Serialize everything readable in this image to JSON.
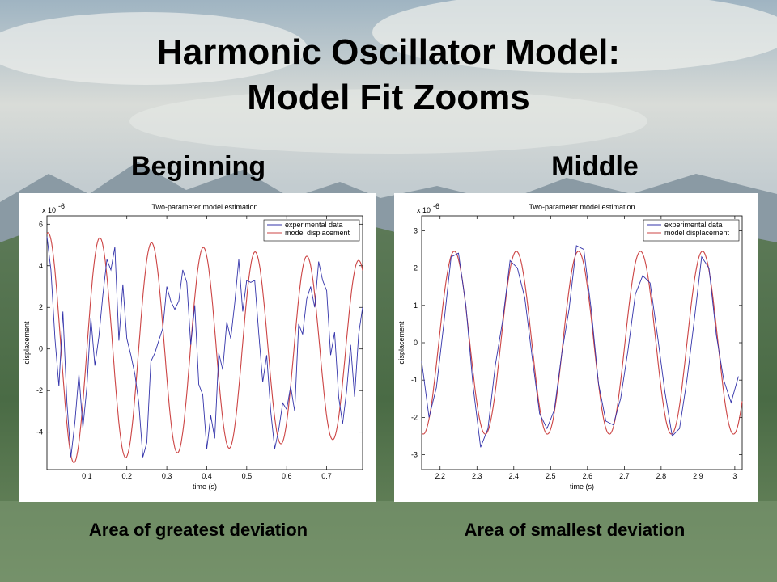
{
  "slide": {
    "title_line1": "Harmonic Oscillator Model:",
    "title_line2": "Model Fit Zooms",
    "left_heading": "Beginning",
    "right_heading": "Middle",
    "left_caption": "Area of greatest deviation",
    "right_caption": "Area of smallest deviation",
    "background_colors": {
      "sky": "#b9c7d0",
      "mountain": "#7f8f99",
      "forest": "#3f5f3a"
    }
  },
  "chart_data": [
    {
      "type": "line",
      "title": "Two-parameter model estimation",
      "xlabel": "time (s)",
      "ylabel": "displacement",
      "y_exponent": "x 10",
      "y_exponent_power": "-6",
      "xlim": [
        0.0,
        0.79
      ],
      "ylim": [
        -5.8,
        6.4
      ],
      "xticks": [
        0.1,
        0.2,
        0.3,
        0.4,
        0.5,
        0.6,
        0.7
      ],
      "xtick_labels": [
        "0.1",
        "0.2",
        "0.3",
        "0.4",
        "0.5",
        "0.6",
        "0.7"
      ],
      "yticks": [
        -4,
        -2,
        0,
        2,
        4,
        6
      ],
      "ytick_labels": [
        "-4",
        "-2",
        "0",
        "2",
        "4",
        "6"
      ],
      "legend_position": "top-right",
      "series": [
        {
          "name": "experimental data",
          "color": "#3333aa",
          "x": [
            0.0,
            0.01,
            0.02,
            0.03,
            0.04,
            0.05,
            0.06,
            0.07,
            0.08,
            0.09,
            0.1,
            0.11,
            0.12,
            0.13,
            0.14,
            0.15,
            0.16,
            0.17,
            0.18,
            0.19,
            0.2,
            0.21,
            0.22,
            0.23,
            0.24,
            0.25,
            0.26,
            0.27,
            0.28,
            0.29,
            0.3,
            0.31,
            0.32,
            0.33,
            0.34,
            0.35,
            0.36,
            0.37,
            0.38,
            0.39,
            0.4,
            0.41,
            0.42,
            0.43,
            0.44,
            0.45,
            0.46,
            0.47,
            0.48,
            0.49,
            0.5,
            0.51,
            0.52,
            0.53,
            0.54,
            0.55,
            0.56,
            0.57,
            0.58,
            0.59,
            0.6,
            0.61,
            0.62,
            0.63,
            0.64,
            0.65,
            0.66,
            0.67,
            0.68,
            0.69,
            0.7,
            0.71,
            0.72,
            0.73,
            0.74,
            0.75,
            0.76,
            0.77,
            0.78,
            0.79
          ],
          "y": [
            5.4,
            3.8,
            0.5,
            -1.8,
            1.8,
            -2.6,
            -5.2,
            -3.5,
            -1.2,
            -3.8,
            -1.8,
            1.5,
            -0.8,
            0.6,
            2.6,
            4.3,
            3.8,
            4.9,
            0.4,
            3.1,
            0.5,
            -0.3,
            -1.2,
            -2.6,
            -5.2,
            -4.5,
            -0.6,
            -0.2,
            0.4,
            1.0,
            3.0,
            2.3,
            1.9,
            2.3,
            3.8,
            3.2,
            0.2,
            2.1,
            -1.7,
            -2.2,
            -4.8,
            -3.2,
            -4.3,
            -0.2,
            -1.0,
            1.3,
            0.5,
            2.2,
            4.3,
            1.8,
            3.3,
            3.2,
            3.3,
            0.8,
            -1.6,
            -0.3,
            -3.0,
            -4.8,
            -3.9,
            -2.6,
            -2.9,
            -1.8,
            -3.0,
            1.2,
            0.7,
            2.4,
            3.0,
            2.0,
            4.2,
            3.3,
            2.8,
            -0.3,
            0.8,
            -2.3,
            -3.6,
            -2.0,
            0.2,
            -2.3,
            0.7,
            2.0
          ]
        },
        {
          "name": "model displacement",
          "color": "#cc4444",
          "amplitude": 5.6,
          "decay": 0.35,
          "omega": 48.5,
          "phase": 1.43
        }
      ]
    },
    {
      "type": "line",
      "title": "Two-parameter model estimation",
      "xlabel": "time (s)",
      "ylabel": "displacement",
      "y_exponent": "x 10",
      "y_exponent_power": "-6",
      "xlim": [
        2.15,
        3.02
      ],
      "ylim": [
        -3.4,
        3.4
      ],
      "xticks": [
        2.2,
        2.3,
        2.4,
        2.5,
        2.6,
        2.7,
        2.8,
        2.9,
        3.0
      ],
      "xtick_labels": [
        "2.2",
        "2.3",
        "2.4",
        "2.5",
        "2.6",
        "2.7",
        "2.8",
        "2.9",
        "3"
      ],
      "yticks": [
        -3,
        -2,
        -1,
        0,
        1,
        2,
        3
      ],
      "ytick_labels": [
        "-3",
        "-2",
        "-1",
        "0",
        "1",
        "2",
        "3"
      ],
      "legend_position": "top-right",
      "series": [
        {
          "name": "experimental data",
          "color": "#3333aa",
          "x": [
            2.15,
            2.17,
            2.19,
            2.21,
            2.23,
            2.25,
            2.27,
            2.29,
            2.31,
            2.33,
            2.35,
            2.37,
            2.39,
            2.41,
            2.43,
            2.45,
            2.47,
            2.49,
            2.51,
            2.53,
            2.55,
            2.57,
            2.59,
            2.61,
            2.63,
            2.65,
            2.67,
            2.69,
            2.71,
            2.73,
            2.75,
            2.77,
            2.79,
            2.81,
            2.83,
            2.85,
            2.87,
            2.89,
            2.91,
            2.93,
            2.95,
            2.97,
            2.99,
            3.01
          ],
          "y": [
            -0.5,
            -2.0,
            -1.2,
            0.5,
            2.3,
            2.4,
            1.0,
            -1.2,
            -2.8,
            -2.3,
            -0.6,
            0.6,
            2.2,
            2.0,
            1.2,
            -0.4,
            -1.9,
            -2.3,
            -1.8,
            -0.3,
            0.9,
            2.6,
            2.5,
            0.9,
            -1.1,
            -2.1,
            -2.2,
            -1.5,
            -0.2,
            1.3,
            1.8,
            1.6,
            0.2,
            -1.3,
            -2.5,
            -2.3,
            -1.0,
            0.6,
            2.3,
            2.0,
            0.2,
            -1.0,
            -1.6,
            -0.9
          ]
        },
        {
          "name": "model displacement",
          "color": "#cc4444",
          "amplitude": 2.45,
          "decay": 0.0,
          "omega": 37.3,
          "phase": -1.73
        }
      ]
    }
  ]
}
